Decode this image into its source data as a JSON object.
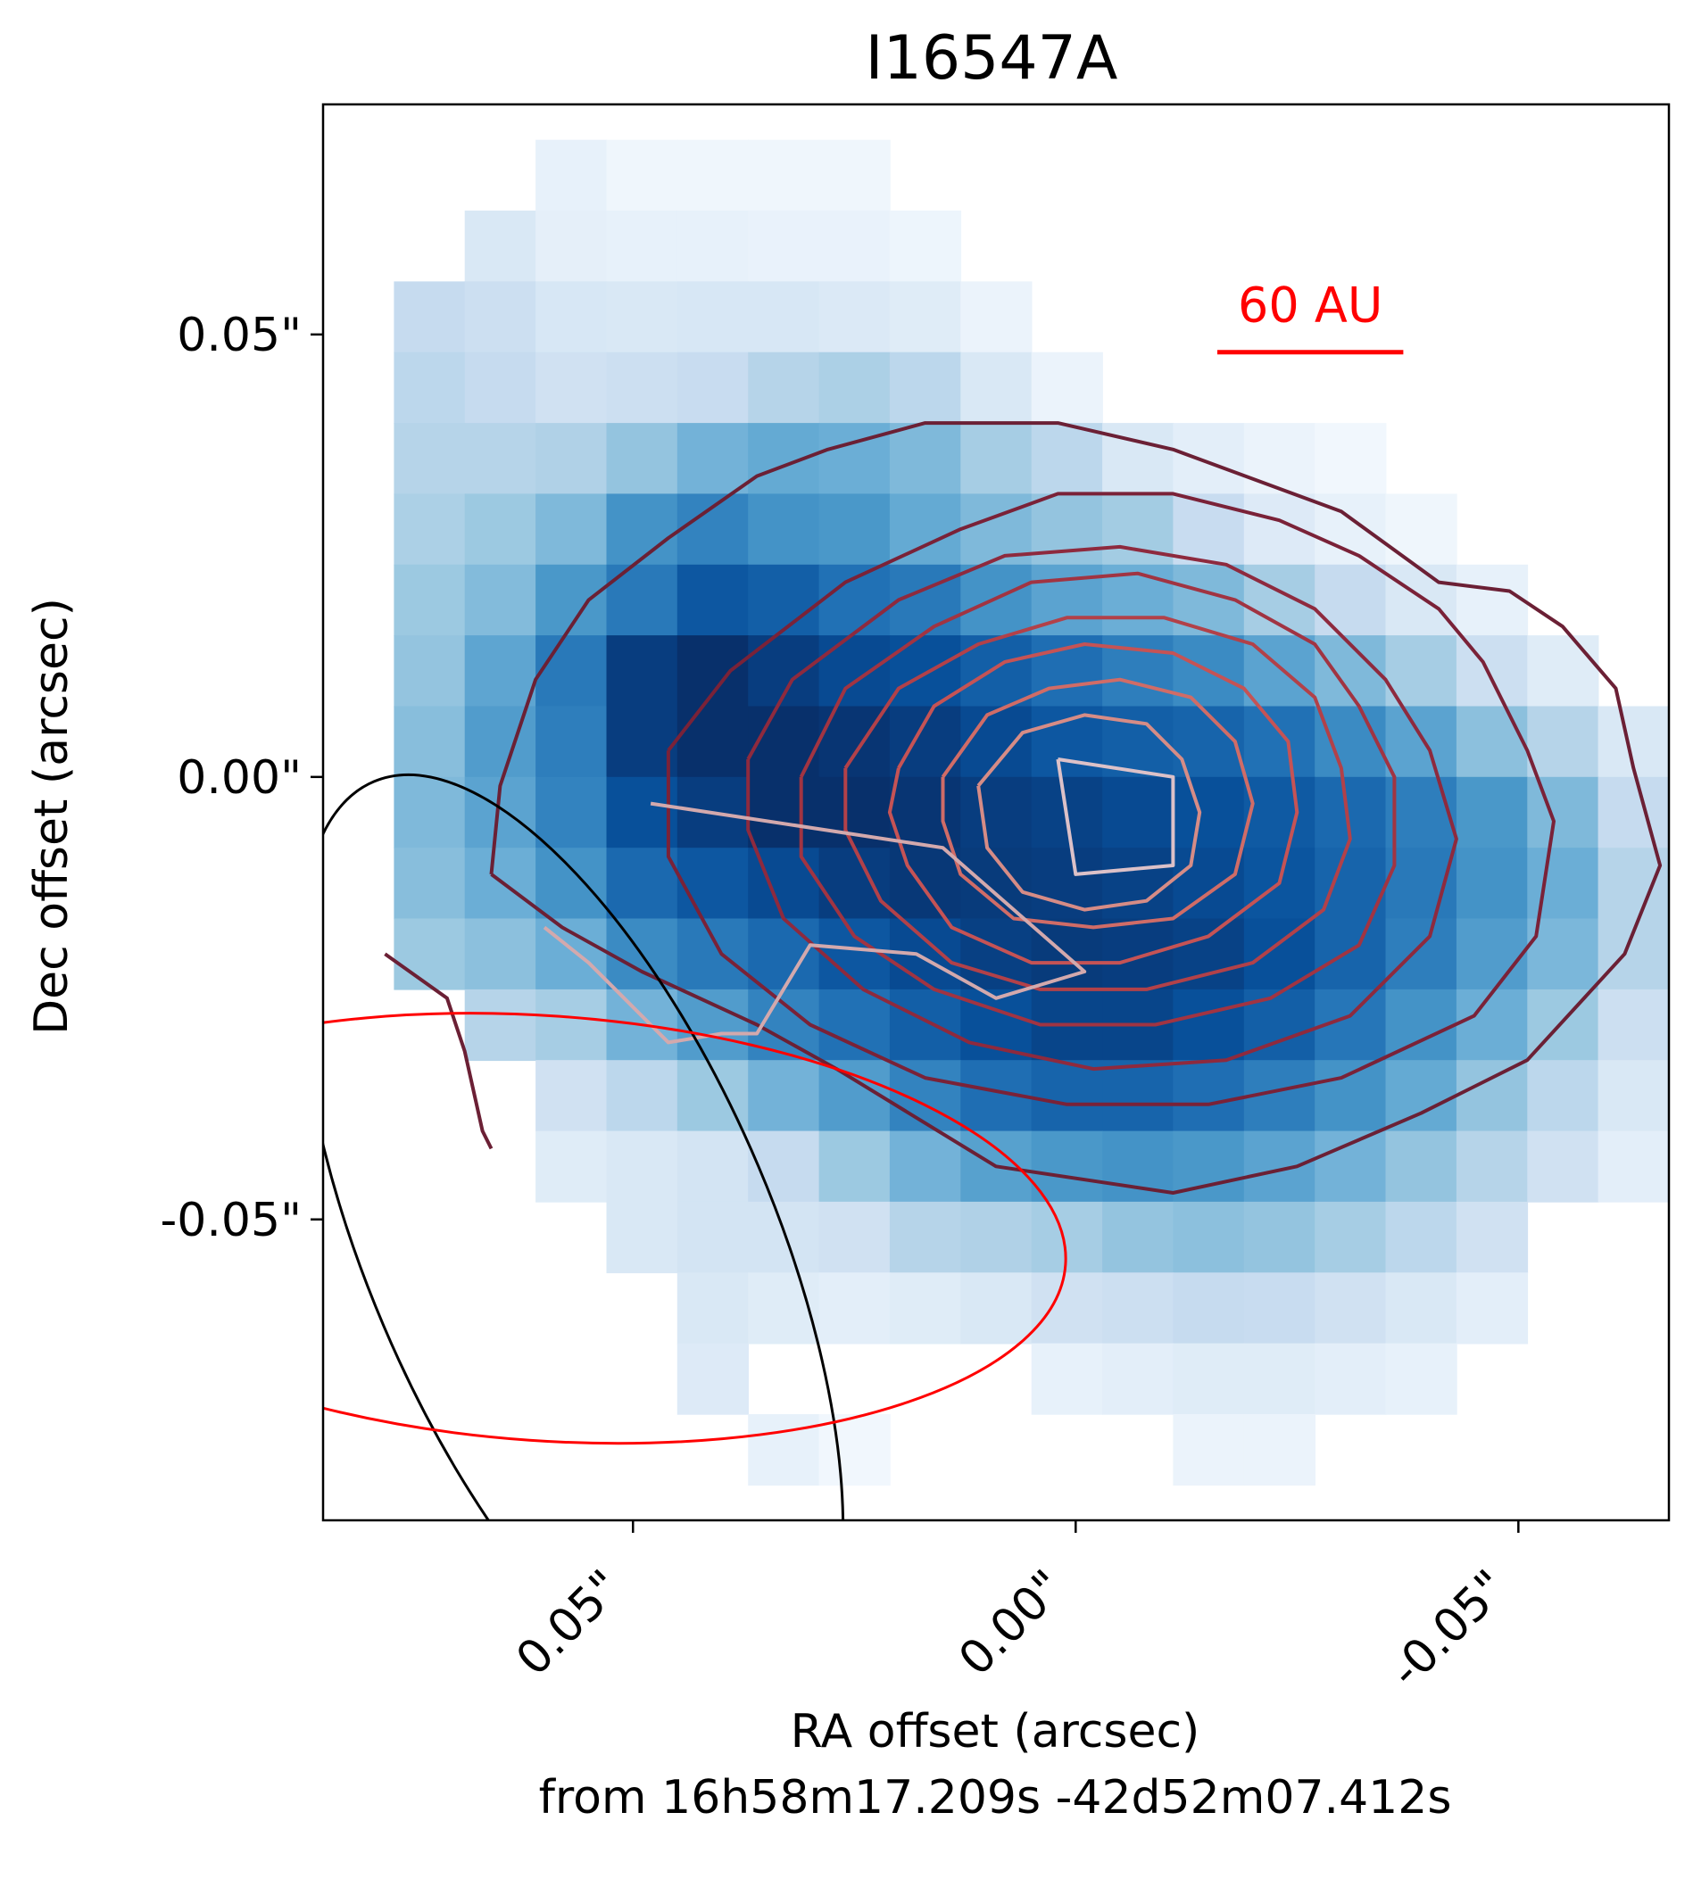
{
  "chart_data": {
    "type": "heatmap",
    "title": "I16547A",
    "xlabel": "RA offset (arcsec)",
    "xlabel_line2": "from 16h58m17.209s -42d52m07.412s",
    "ylabel": "Dec offset (arcsec)",
    "xlim": [
      0.085,
      -0.067
    ],
    "ylim": [
      -0.084,
      0.076
    ],
    "x_ticks": [
      {
        "value": 0.05,
        "label": "0.05\""
      },
      {
        "value": 0.0,
        "label": "0.00\""
      },
      {
        "value": -0.05,
        "label": "-0.05\""
      }
    ],
    "y_ticks": [
      {
        "value": 0.05,
        "label": "0.05\""
      },
      {
        "value": 0.0,
        "label": "0.00\""
      },
      {
        "value": -0.05,
        "label": "-0.05\""
      }
    ],
    "scale_bar": {
      "label": "60 AU",
      "x_start": -0.016,
      "x_end": -0.037,
      "y": 0.048,
      "color": "#ff0000"
    },
    "heatmap": {
      "colormap": "Blues",
      "pixel_size": 0.008,
      "x_start": 0.085,
      "y_start": 0.072,
      "rows": [
        [
          0,
          0,
          0,
          0.08,
          0.04,
          0.04,
          0.04,
          0.04,
          0,
          0,
          0,
          0,
          0,
          0,
          0,
          0,
          0,
          0,
          0,
          0
        ],
        [
          0,
          0,
          0.15,
          0.09,
          0.08,
          0.08,
          0.07,
          0.07,
          0.05,
          0,
          0,
          0,
          0,
          0,
          0,
          0,
          0,
          0,
          0,
          0
        ],
        [
          0,
          0.25,
          0.22,
          0.16,
          0.15,
          0.16,
          0.16,
          0.14,
          0.12,
          0.06,
          0,
          0,
          0,
          0,
          0,
          0,
          0,
          0,
          0,
          0
        ],
        [
          0,
          0.28,
          0.25,
          0.2,
          0.22,
          0.24,
          0.3,
          0.33,
          0.28,
          0.15,
          0.06,
          0,
          0,
          0,
          0,
          0,
          0,
          0,
          0,
          0
        ],
        [
          0,
          0.3,
          0.3,
          0.32,
          0.4,
          0.48,
          0.52,
          0.5,
          0.45,
          0.35,
          0.28,
          0.15,
          0.1,
          0.06,
          0.03,
          0,
          0,
          0,
          0,
          0
        ],
        [
          0,
          0.33,
          0.38,
          0.45,
          0.62,
          0.68,
          0.62,
          0.6,
          0.52,
          0.45,
          0.4,
          0.36,
          0.24,
          0.13,
          0.08,
          0.04,
          0,
          0,
          0,
          0
        ],
        [
          0,
          0.38,
          0.44,
          0.6,
          0.72,
          0.85,
          0.82,
          0.75,
          0.72,
          0.62,
          0.55,
          0.5,
          0.45,
          0.35,
          0.25,
          0.15,
          0.08,
          0,
          0,
          0
        ],
        [
          0,
          0.4,
          0.54,
          0.72,
          0.95,
          1.0,
          0.95,
          0.9,
          0.88,
          0.82,
          0.76,
          0.7,
          0.65,
          0.55,
          0.45,
          0.35,
          0.22,
          0.12,
          0,
          0
        ],
        [
          0,
          0.43,
          0.58,
          0.7,
          0.95,
          1.0,
          1.0,
          0.98,
          0.95,
          0.9,
          0.85,
          0.82,
          0.8,
          0.75,
          0.65,
          0.55,
          0.42,
          0.3,
          0.15,
          0
        ],
        [
          0,
          0.45,
          0.55,
          0.68,
          0.88,
          0.95,
          1.0,
          1.0,
          0.98,
          0.95,
          0.93,
          0.9,
          0.88,
          0.84,
          0.78,
          0.7,
          0.6,
          0.45,
          0.25,
          0.08
        ],
        [
          0,
          0.43,
          0.5,
          0.62,
          0.78,
          0.85,
          0.9,
          0.95,
          0.97,
          0.96,
          0.95,
          0.93,
          0.9,
          0.86,
          0.8,
          0.72,
          0.62,
          0.5,
          0.3,
          0.12
        ],
        [
          0,
          0.38,
          0.42,
          0.5,
          0.65,
          0.72,
          0.78,
          0.85,
          0.9,
          0.94,
          0.96,
          0.95,
          0.93,
          0.88,
          0.8,
          0.7,
          0.58,
          0.46,
          0.3,
          0.12
        ],
        [
          0,
          0,
          0.3,
          0.35,
          0.48,
          0.58,
          0.68,
          0.75,
          0.82,
          0.88,
          0.92,
          0.92,
          0.88,
          0.82,
          0.73,
          0.62,
          0.5,
          0.38,
          0.22,
          0
        ],
        [
          0,
          0,
          0,
          0.2,
          0.28,
          0.38,
          0.48,
          0.58,
          0.68,
          0.76,
          0.8,
          0.8,
          0.76,
          0.7,
          0.62,
          0.52,
          0.4,
          0.28,
          0.15,
          0
        ],
        [
          0,
          0,
          0,
          0.12,
          0.15,
          0.18,
          0.25,
          0.38,
          0.48,
          0.56,
          0.6,
          0.62,
          0.6,
          0.55,
          0.48,
          0.4,
          0.3,
          0.2,
          0.1,
          0
        ],
        [
          0,
          0,
          0,
          0,
          0.15,
          0.18,
          0.18,
          0.2,
          0.3,
          0.32,
          0.35,
          0.4,
          0.42,
          0.4,
          0.35,
          0.28,
          0.2,
          0,
          0,
          0
        ],
        [
          0,
          0,
          0,
          0,
          0,
          0.15,
          0.12,
          0.1,
          0.12,
          0.15,
          0.2,
          0.22,
          0.25,
          0.24,
          0.2,
          0.15,
          0.1,
          0,
          0,
          0
        ],
        [
          0,
          0,
          0,
          0,
          0,
          0.13,
          0,
          0,
          0,
          0,
          0.08,
          0.1,
          0.12,
          0.12,
          0.1,
          0.08,
          0,
          0,
          0,
          0
        ],
        [
          0,
          0,
          0,
          0,
          0,
          0,
          0.08,
          0.03,
          0,
          0,
          0,
          0,
          0.06,
          0.06,
          0,
          0,
          0,
          0,
          0,
          0
        ]
      ]
    },
    "contours": [
      {
        "color": "#6b2035",
        "points": [
          [
            0.066,
            -0.011
          ],
          [
            0.065,
            -0.001
          ],
          [
            0.061,
            0.011
          ],
          [
            0.055,
            0.02
          ],
          [
            0.046,
            0.027
          ],
          [
            0.036,
            0.034
          ],
          [
            0.028,
            0.037
          ],
          [
            0.017,
            0.04
          ],
          [
            0.009,
            0.04
          ],
          [
            0.002,
            0.04
          ],
          [
            -0.011,
            0.037
          ],
          [
            -0.03,
            0.03
          ],
          [
            -0.041,
            0.022
          ],
          [
            -0.049,
            0.021
          ],
          [
            -0.055,
            0.017
          ],
          [
            -0.061,
            0.01
          ],
          [
            -0.063,
            0.001
          ],
          [
            -0.066,
            -0.01
          ],
          [
            -0.062,
            -0.02
          ],
          [
            -0.051,
            -0.032
          ],
          [
            -0.039,
            -0.038
          ],
          [
            -0.025,
            -0.044
          ],
          [
            -0.011,
            -0.047
          ],
          [
            0.009,
            -0.044
          ],
          [
            0.027,
            -0.033
          ],
          [
            0.036,
            -0.028
          ],
          [
            0.049,
            -0.022
          ],
          [
            0.058,
            -0.017
          ],
          [
            0.066,
            -0.011
          ]
        ]
      },
      {
        "color": "#7a2238",
        "points": [
          [
            0.046,
            0.003
          ],
          [
            0.039,
            0.012
          ],
          [
            0.026,
            0.022
          ],
          [
            0.013,
            0.028
          ],
          [
            0.002,
            0.032
          ],
          [
            -0.011,
            0.032
          ],
          [
            -0.023,
            0.029
          ],
          [
            -0.032,
            0.025
          ],
          [
            -0.041,
            0.019
          ],
          [
            -0.046,
            0.013
          ],
          [
            -0.051,
            0.003
          ],
          [
            -0.054,
            -0.005
          ],
          [
            -0.052,
            -0.018
          ],
          [
            -0.045,
            -0.027
          ],
          [
            -0.03,
            -0.034
          ],
          [
            -0.015,
            -0.037
          ],
          [
            0.001,
            -0.037
          ],
          [
            0.017,
            -0.034
          ],
          [
            0.03,
            -0.028
          ],
          [
            0.04,
            -0.02
          ],
          [
            0.046,
            -0.009
          ],
          [
            0.046,
            0.003
          ]
        ]
      },
      {
        "color": "#8e2a3e",
        "points": [
          [
            0.037,
            0.002
          ],
          [
            0.032,
            0.011
          ],
          [
            0.02,
            0.02
          ],
          [
            0.008,
            0.025
          ],
          [
            -0.005,
            0.026
          ],
          [
            -0.017,
            0.024
          ],
          [
            -0.027,
            0.019
          ],
          [
            -0.035,
            0.011
          ],
          [
            -0.04,
            0.003
          ],
          [
            -0.043,
            -0.007
          ],
          [
            -0.04,
            -0.018
          ],
          [
            -0.031,
            -0.027
          ],
          [
            -0.017,
            -0.032
          ],
          [
            -0.002,
            -0.033
          ],
          [
            0.012,
            -0.03
          ],
          [
            0.024,
            -0.024
          ],
          [
            0.033,
            -0.016
          ],
          [
            0.037,
            -0.006
          ],
          [
            0.037,
            0.002
          ]
        ]
      },
      {
        "color": "#a13442",
        "points": [
          [
            0.031,
            0.0
          ],
          [
            0.026,
            0.01
          ],
          [
            0.016,
            0.017
          ],
          [
            0.005,
            0.022
          ],
          [
            -0.007,
            0.023
          ],
          [
            -0.018,
            0.02
          ],
          [
            -0.027,
            0.015
          ],
          [
            -0.032,
            0.008
          ],
          [
            -0.036,
            0.0
          ],
          [
            -0.036,
            -0.01
          ],
          [
            -0.032,
            -0.019
          ],
          [
            -0.022,
            -0.025
          ],
          [
            -0.009,
            -0.028
          ],
          [
            0.004,
            -0.028
          ],
          [
            0.016,
            -0.024
          ],
          [
            0.025,
            -0.018
          ],
          [
            0.031,
            -0.009
          ],
          [
            0.031,
            0.0
          ]
        ]
      },
      {
        "color": "#b24149",
        "points": [
          [
            0.026,
            0.001
          ],
          [
            0.02,
            0.01
          ],
          [
            0.011,
            0.015
          ],
          [
            0.001,
            0.018
          ],
          [
            -0.01,
            0.018
          ],
          [
            -0.02,
            0.015
          ],
          [
            -0.027,
            0.009
          ],
          [
            -0.03,
            0.001
          ],
          [
            -0.031,
            -0.007
          ],
          [
            -0.028,
            -0.015
          ],
          [
            -0.02,
            -0.021
          ],
          [
            -0.008,
            -0.024
          ],
          [
            0.004,
            -0.024
          ],
          [
            0.014,
            -0.021
          ],
          [
            0.022,
            -0.014
          ],
          [
            0.026,
            -0.006
          ],
          [
            0.026,
            0.001
          ]
        ]
      },
      {
        "color": "#c55355",
        "points": [
          [
            0.02,
            0.001
          ],
          [
            0.016,
            0.008
          ],
          [
            0.008,
            0.013
          ],
          [
            -0.001,
            0.015
          ],
          [
            -0.011,
            0.014
          ],
          [
            -0.019,
            0.01
          ],
          [
            -0.024,
            0.004
          ],
          [
            -0.025,
            -0.004
          ],
          [
            -0.023,
            -0.012
          ],
          [
            -0.015,
            -0.018
          ],
          [
            -0.005,
            -0.021
          ],
          [
            0.005,
            -0.021
          ],
          [
            0.014,
            -0.017
          ],
          [
            0.019,
            -0.01
          ],
          [
            0.021,
            -0.004
          ],
          [
            0.02,
            0.001
          ]
        ]
      },
      {
        "color": "#d06c67",
        "points": [
          [
            0.015,
            0.0
          ],
          [
            0.01,
            0.007
          ],
          [
            0.003,
            0.01
          ],
          [
            -0.005,
            0.011
          ],
          [
            -0.013,
            0.009
          ],
          [
            -0.018,
            0.004
          ],
          [
            -0.02,
            -0.003
          ],
          [
            -0.018,
            -0.011
          ],
          [
            -0.011,
            -0.016
          ],
          [
            -0.002,
            -0.017
          ],
          [
            0.007,
            -0.016
          ],
          [
            0.013,
            -0.011
          ],
          [
            0.015,
            -0.005
          ],
          [
            0.015,
            0.0
          ]
        ]
      },
      {
        "color": "#d68c86",
        "points": [
          [
            0.011,
            -0.001
          ],
          [
            0.006,
            0.005
          ],
          [
            -0.001,
            0.007
          ],
          [
            -0.008,
            0.006
          ],
          [
            -0.012,
            0.002
          ],
          [
            -0.014,
            -0.004
          ],
          [
            -0.013,
            -0.01
          ],
          [
            -0.008,
            -0.014
          ],
          [
            -0.001,
            -0.015
          ],
          [
            0.006,
            -0.013
          ],
          [
            0.01,
            -0.008
          ],
          [
            0.011,
            -0.001
          ]
        ]
      },
      {
        "color": "#d3a9ad",
        "points": [
          [
            0.06,
            -0.017
          ],
          [
            0.055,
            -0.021
          ],
          [
            0.046,
            -0.03
          ],
          [
            0.04,
            -0.029
          ],
          [
            0.036,
            -0.029
          ],
          [
            0.03,
            -0.019
          ],
          [
            0.018,
            -0.02
          ],
          [
            0.009,
            -0.025
          ],
          [
            -0.001,
            -0.022
          ],
          [
            0.015,
            -0.008
          ],
          [
            0.048,
            -0.003
          ]
        ]
      },
      {
        "color": "#dcc1c8",
        "points": [
          [
            0.002,
            0.002
          ],
          [
            -0.011,
            0.0
          ],
          [
            -0.011,
            -0.01
          ],
          [
            0.0,
            -0.011
          ],
          [
            0.002,
            0.002
          ]
        ]
      }
    ],
    "edge_contour": {
      "color": "#6b2035",
      "points": [
        [
          0.078,
          -0.02
        ],
        [
          0.071,
          -0.025
        ],
        [
          0.069,
          -0.031
        ],
        [
          0.067,
          -0.04
        ],
        [
          0.066,
          -0.042
        ]
      ]
    },
    "beams": [
      {
        "color": "#000000",
        "cx": 0.057,
        "cy": -0.053,
        "rx": 0.023,
        "ry": 0.057,
        "angle": -23
      },
      {
        "color": "#ff0000",
        "cx": 0.06,
        "cy": -0.051,
        "rx": 0.059,
        "ry": 0.024,
        "angle": 4
      }
    ]
  }
}
